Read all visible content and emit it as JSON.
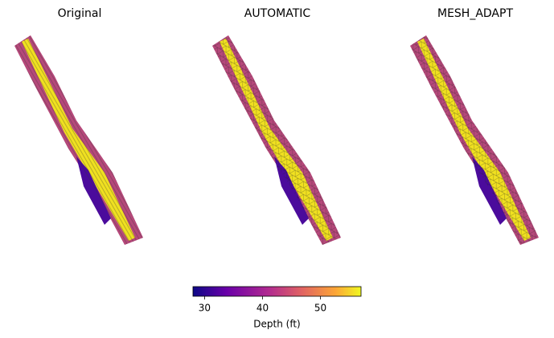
{
  "panels": [
    {
      "title": "Original"
    },
    {
      "title": "AUTOMATIC"
    },
    {
      "title": "MESH_ADAPT"
    }
  ],
  "colorbar": {
    "label": "Depth (ft)",
    "lim": [
      28,
      57
    ],
    "ticks": [
      30,
      40,
      50
    ]
  }
}
